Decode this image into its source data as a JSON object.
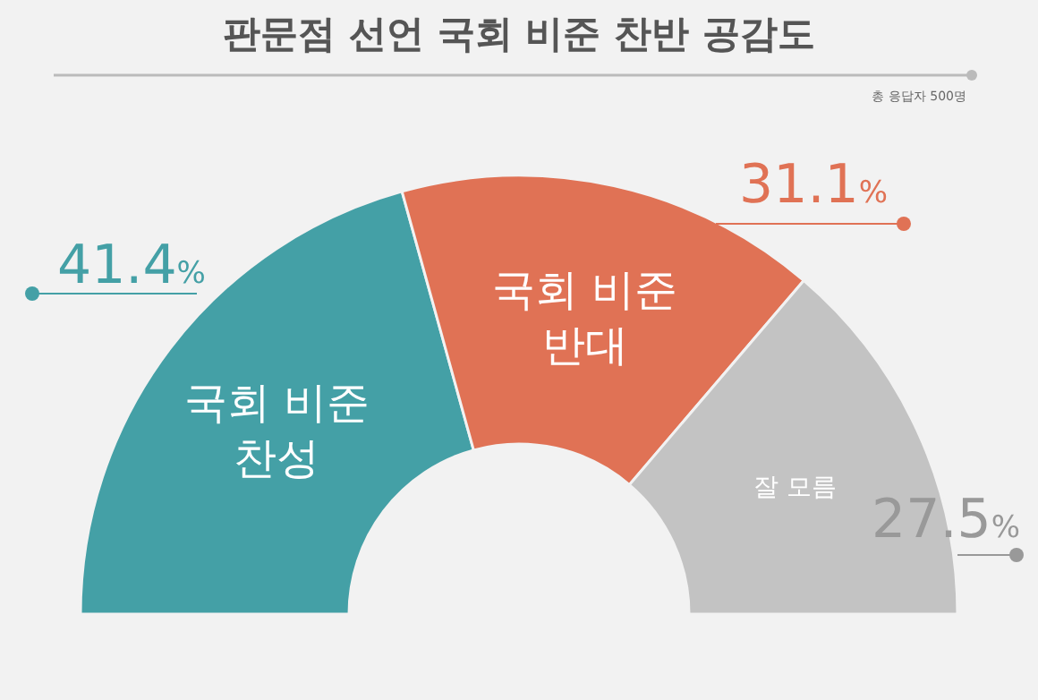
{
  "chart_data": {
    "type": "donut",
    "title": "판문점 선언 국회 비준 찬반 공감도",
    "subtitle": "총 응답자 500명",
    "categories": [
      "국회 비준\n찬성",
      "국회 비준\n반대",
      "잘 모름"
    ],
    "values": [
      41.4,
      31.1,
      27.5
    ],
    "colors": [
      "#44a0a6",
      "#e07255",
      "#c3c3c3"
    ],
    "value_labels": [
      "41.4%",
      "31.1%",
      "27.5%"
    ]
  }
}
